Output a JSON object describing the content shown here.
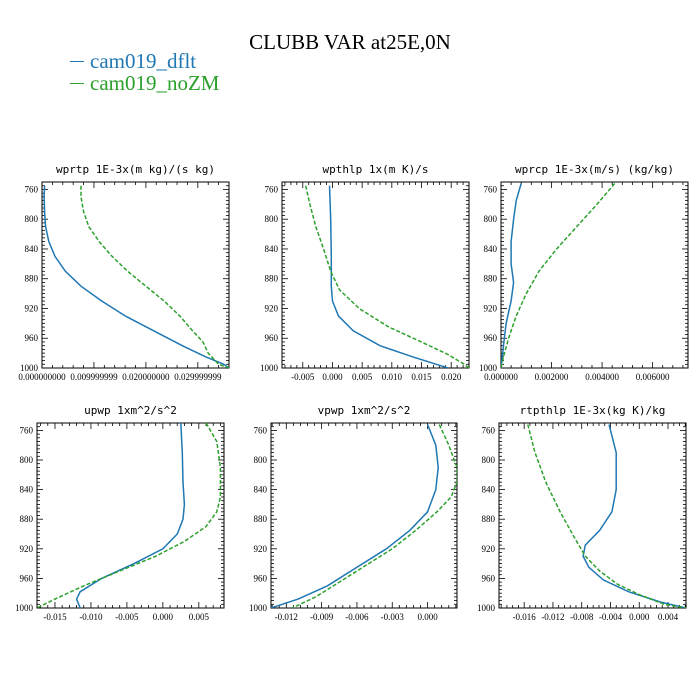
{
  "figure": {
    "title": "CLUBB VAR at25E,0N",
    "legend": [
      {
        "name": "cam019_dflt",
        "color": "#1f77b4"
      },
      {
        "name": "cam019_noZM",
        "color": "#2ca02c"
      }
    ]
  },
  "chart_data": [
    {
      "type": "line",
      "title": "wprtp   1E-3x(m kg)/(s kg)",
      "xlim": [
        0,
        0.036
      ],
      "ylim": [
        1000,
        750
      ],
      "xticks": [
        0,
        0.01,
        0.02,
        0.03
      ],
      "xtick_labels": [
        "0.000000000",
        "0.009999999",
        "0.020000000",
        "0.029999999"
      ],
      "yticks": [
        760,
        800,
        840,
        880,
        920,
        960,
        1000
      ],
      "series": [
        {
          "name": "cam019_dflt",
          "color": "#1f77b4",
          "dash": false,
          "points": [
            [
              0.0005,
              755
            ],
            [
              0.0004,
              770
            ],
            [
              0.0005,
              790
            ],
            [
              0.0007,
              810
            ],
            [
              0.0013,
              830
            ],
            [
              0.0025,
              850
            ],
            [
              0.0045,
              870
            ],
            [
              0.0075,
              890
            ],
            [
              0.0115,
              910
            ],
            [
              0.016,
              930
            ],
            [
              0.0215,
              950
            ],
            [
              0.027,
              970
            ],
            [
              0.0315,
              985
            ],
            [
              0.035,
              995
            ],
            [
              0.036,
              1000
            ]
          ]
        },
        {
          "name": "cam019_noZM",
          "color": "#2ca02c",
          "dash": true,
          "points": [
            [
              0.0075,
              755
            ],
            [
              0.0075,
              770
            ],
            [
              0.008,
              790
            ],
            [
              0.009,
              810
            ],
            [
              0.011,
              830
            ],
            [
              0.0135,
              850
            ],
            [
              0.0165,
              870
            ],
            [
              0.02,
              890
            ],
            [
              0.0235,
              910
            ],
            [
              0.0265,
              930
            ],
            [
              0.029,
              950
            ],
            [
              0.031,
              965
            ],
            [
              0.032,
              980
            ],
            [
              0.034,
              995
            ],
            [
              0.036,
              1000
            ]
          ]
        }
      ]
    },
    {
      "type": "line",
      "title": "wpthlp   1x(m K)/s",
      "xlim": [
        -0.0085,
        0.023
      ],
      "ylim": [
        1000,
        750
      ],
      "xticks": [
        -0.005,
        0,
        0.005,
        0.01,
        0.015,
        0.02
      ],
      "xtick_labels": [
        "-0.005",
        "0.000",
        "0.005",
        "0.010",
        "0.015",
        "0.020"
      ],
      "yticks": [
        760,
        800,
        840,
        880,
        920,
        960,
        1000
      ],
      "series": [
        {
          "name": "cam019_dflt",
          "color": "#1f77b4",
          "dash": false,
          "points": [
            [
              -0.0005,
              755
            ],
            [
              -0.0003,
              800
            ],
            [
              -0.0002,
              850
            ],
            [
              -0.0002,
              890
            ],
            [
              0,
              910
            ],
            [
              0.001,
              930
            ],
            [
              0.0035,
              950
            ],
            [
              0.008,
              970
            ],
            [
              0.0135,
              985
            ],
            [
              0.0175,
              995
            ],
            [
              0.0195,
              1000
            ]
          ]
        },
        {
          "name": "cam019_noZM",
          "color": "#2ca02c",
          "dash": true,
          "points": [
            [
              -0.0045,
              755
            ],
            [
              -0.0038,
              780
            ],
            [
              -0.0028,
              810
            ],
            [
              -0.0015,
              840
            ],
            [
              -0.0003,
              870
            ],
            [
              0.0012,
              895
            ],
            [
              0.0045,
              920
            ],
            [
              0.0095,
              945
            ],
            [
              0.015,
              965
            ],
            [
              0.0195,
              982
            ],
            [
              0.0222,
              995
            ],
            [
              0.023,
              1000
            ]
          ]
        }
      ]
    },
    {
      "type": "line",
      "title": "wprcp   1E-3x(m/s) (kg/kg)",
      "xlim": [
        0,
        0.0074
      ],
      "ylim": [
        1000,
        750
      ],
      "xticks": [
        0,
        0.002,
        0.004,
        0.006
      ],
      "xtick_labels": [
        "0.000000",
        "0.002000",
        "0.004000",
        "0.006000"
      ],
      "yticks": [
        760,
        800,
        840,
        880,
        920,
        960,
        1000
      ],
      "series": [
        {
          "name": "cam019_dflt",
          "color": "#1f77b4",
          "dash": false,
          "points": [
            [
              0.0008,
              752
            ],
            [
              0.0006,
              775
            ],
            [
              0.0005,
              800
            ],
            [
              0.0004,
              830
            ],
            [
              0.0004,
              860
            ],
            [
              0.0005,
              885
            ],
            [
              0.0004,
              910
            ],
            [
              0.0002,
              940
            ],
            [
              0.0001,
              970
            ],
            [
              0,
              1000
            ]
          ]
        },
        {
          "name": "cam019_noZM",
          "color": "#2ca02c",
          "dash": true,
          "points": [
            [
              0.0045,
              752
            ],
            [
              0.0038,
              780
            ],
            [
              0.003,
              810
            ],
            [
              0.0022,
              840
            ],
            [
              0.0015,
              870
            ],
            [
              0.001,
              900
            ],
            [
              0.0006,
              930
            ],
            [
              0.0003,
              960
            ],
            [
              0.0001,
              985
            ],
            [
              0,
              1000
            ]
          ]
        }
      ]
    },
    {
      "type": "line",
      "title": "upwp   1xm^2/s^2",
      "xlim": [
        -0.0175,
        0.0085
      ],
      "ylim": [
        1000,
        750
      ],
      "xticks": [
        -0.015,
        -0.01,
        -0.005,
        0,
        0.005
      ],
      "xtick_labels": [
        "-0.015",
        "-0.010",
        "-0.005",
        "0.000",
        "0.005"
      ],
      "yticks": [
        760,
        800,
        840,
        880,
        920,
        960,
        1000
      ],
      "series": [
        {
          "name": "cam019_dflt",
          "color": "#1f77b4",
          "dash": false,
          "points": [
            [
              0.0025,
              750
            ],
            [
              0.0027,
              790
            ],
            [
              0.0028,
              830
            ],
            [
              0.003,
              860
            ],
            [
              0.0028,
              880
            ],
            [
              0.002,
              900
            ],
            [
              0,
              920
            ],
            [
              -0.004,
              940
            ],
            [
              -0.0085,
              960
            ],
            [
              -0.0115,
              978
            ],
            [
              -0.012,
              988
            ],
            [
              -0.0115,
              1000
            ]
          ]
        },
        {
          "name": "cam019_noZM",
          "color": "#2ca02c",
          "dash": true,
          "points": [
            [
              0.006,
              750
            ],
            [
              0.0075,
              775
            ],
            [
              0.008,
              810
            ],
            [
              0.008,
              850
            ],
            [
              0.0075,
              870
            ],
            [
              0.006,
              890
            ],
            [
              0.003,
              910
            ],
            [
              -0.001,
              930
            ],
            [
              -0.006,
              950
            ],
            [
              -0.011,
              970
            ],
            [
              -0.015,
              988
            ],
            [
              -0.0175,
              1000
            ]
          ]
        }
      ]
    },
    {
      "type": "line",
      "title": "vpwp   1xm^2/s^2",
      "xlim": [
        -0.0133,
        0.0025
      ],
      "ylim": [
        1000,
        750
      ],
      "xticks": [
        -0.012,
        -0.009,
        -0.006,
        -0.003,
        0
      ],
      "xtick_labels": [
        "-0.012",
        "-0.009",
        "-0.006",
        "-0.003",
        "0.000"
      ],
      "yticks": [
        760,
        800,
        840,
        880,
        920,
        960,
        1000
      ],
      "series": [
        {
          "name": "cam019_dflt",
          "color": "#1f77b4",
          "dash": false,
          "points": [
            [
              0,
              752
            ],
            [
              0.0007,
              780
            ],
            [
              0.0009,
              810
            ],
            [
              0.0007,
              840
            ],
            [
              0,
              870
            ],
            [
              -0.0015,
              895
            ],
            [
              -0.0035,
              920
            ],
            [
              -0.006,
              945
            ],
            [
              -0.0085,
              970
            ],
            [
              -0.011,
              988
            ],
            [
              -0.0133,
              1000
            ]
          ]
        },
        {
          "name": "cam019_noZM",
          "color": "#2ca02c",
          "dash": true,
          "points": [
            [
              0.001,
              752
            ],
            [
              0.0018,
              780
            ],
            [
              0.0025,
              810
            ],
            [
              0.0025,
              830
            ],
            [
              0.002,
              850
            ],
            [
              0.0008,
              870
            ],
            [
              -0.001,
              895
            ],
            [
              -0.003,
              920
            ],
            [
              -0.0055,
              945
            ],
            [
              -0.0075,
              965
            ],
            [
              -0.0095,
              985
            ],
            [
              -0.0115,
              1000
            ]
          ]
        }
      ]
    },
    {
      "type": "line",
      "title": "rtpthlp   1E-3x(kg K)/kg",
      "xlim": [
        -0.0195,
        0.0065
      ],
      "ylim": [
        1000,
        750
      ],
      "xticks": [
        -0.016,
        -0.012,
        -0.008,
        -0.004,
        0,
        0.004
      ],
      "xtick_labels": [
        "-0.016",
        "-0.012",
        "-0.008",
        "-0.004",
        "0.000",
        "0.004"
      ],
      "yticks": [
        760,
        800,
        840,
        880,
        920,
        960,
        1000
      ],
      "series": [
        {
          "name": "cam019_dflt",
          "color": "#1f77b4",
          "dash": false,
          "points": [
            [
              -0.0042,
              752
            ],
            [
              -0.0032,
              790
            ],
            [
              -0.0032,
              840
            ],
            [
              -0.0038,
              870
            ],
            [
              -0.0055,
              895
            ],
            [
              -0.0075,
              915
            ],
            [
              -0.0078,
              930
            ],
            [
              -0.007,
              945
            ],
            [
              -0.005,
              962
            ],
            [
              -0.0015,
              978
            ],
            [
              0.003,
              992
            ],
            [
              0.0065,
              1000
            ]
          ]
        },
        {
          "name": "cam019_noZM",
          "color": "#2ca02c",
          "dash": true,
          "points": [
            [
              -0.0155,
              752
            ],
            [
              -0.0145,
              790
            ],
            [
              -0.013,
              830
            ],
            [
              -0.011,
              870
            ],
            [
              -0.009,
              905
            ],
            [
              -0.0075,
              930
            ],
            [
              -0.0055,
              950
            ],
            [
              -0.003,
              968
            ],
            [
              0,
              982
            ],
            [
              0.0035,
              995
            ],
            [
              0.0065,
              1000
            ]
          ]
        }
      ]
    }
  ]
}
